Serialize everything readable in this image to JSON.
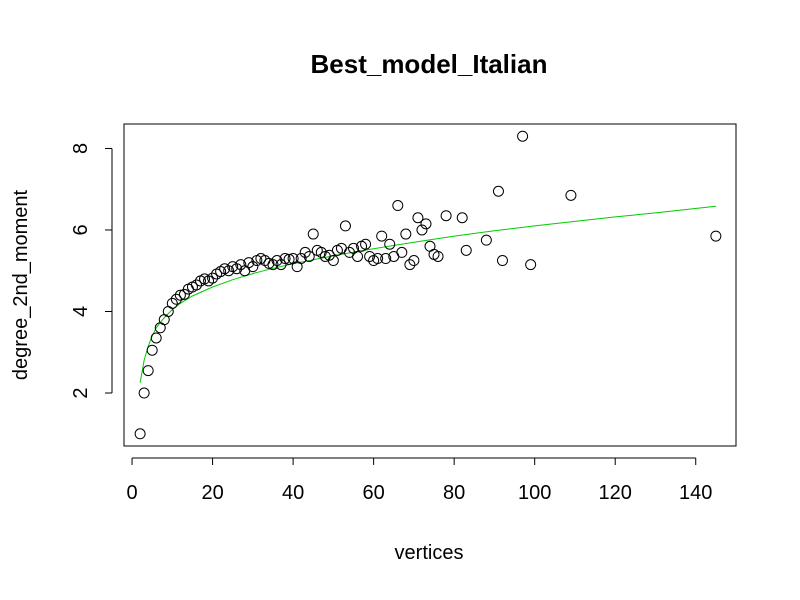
{
  "chart_data": {
    "type": "scatter",
    "title": "Best_model_Italian",
    "xlabel": "vertices",
    "ylabel": "degree_2nd_moment",
    "xlim": [
      -2,
      150
    ],
    "ylim": [
      0.7,
      8.6
    ],
    "x_ticks": [
      0,
      20,
      40,
      60,
      80,
      100,
      120,
      140
    ],
    "y_ticks": [
      2,
      4,
      6,
      8
    ],
    "grid": false,
    "colors": {
      "points": "#000000",
      "fit": "#00cc00"
    },
    "series": [
      {
        "type": "scatter",
        "points": [
          [
            2,
            1.0
          ],
          [
            3,
            2.0
          ],
          [
            4,
            2.55
          ],
          [
            5,
            3.05
          ],
          [
            6,
            3.35
          ],
          [
            7,
            3.6
          ],
          [
            8,
            3.8
          ],
          [
            9,
            4.0
          ],
          [
            10,
            4.2
          ],
          [
            11,
            4.3
          ],
          [
            12,
            4.4
          ],
          [
            13,
            4.42
          ],
          [
            14,
            4.55
          ],
          [
            15,
            4.6
          ],
          [
            16,
            4.65
          ],
          [
            17,
            4.75
          ],
          [
            18,
            4.8
          ],
          [
            19,
            4.75
          ],
          [
            20,
            4.82
          ],
          [
            21,
            4.92
          ],
          [
            22,
            4.98
          ],
          [
            23,
            5.05
          ],
          [
            24,
            5.0
          ],
          [
            25,
            5.1
          ],
          [
            26,
            5.05
          ],
          [
            27,
            5.15
          ],
          [
            28,
            5.0
          ],
          [
            29,
            5.2
          ],
          [
            30,
            5.1
          ],
          [
            31,
            5.25
          ],
          [
            32,
            5.3
          ],
          [
            33,
            5.25
          ],
          [
            34,
            5.18
          ],
          [
            35,
            5.15
          ],
          [
            36,
            5.25
          ],
          [
            37,
            5.15
          ],
          [
            38,
            5.3
          ],
          [
            39,
            5.28
          ],
          [
            40,
            5.3
          ],
          [
            41,
            5.1
          ],
          [
            42,
            5.3
          ],
          [
            43,
            5.45
          ],
          [
            44,
            5.35
          ],
          [
            45,
            5.9
          ],
          [
            46,
            5.5
          ],
          [
            47,
            5.45
          ],
          [
            48,
            5.35
          ],
          [
            49,
            5.38
          ],
          [
            50,
            5.25
          ],
          [
            51,
            5.5
          ],
          [
            52,
            5.55
          ],
          [
            53,
            6.1
          ],
          [
            54,
            5.45
          ],
          [
            55,
            5.55
          ],
          [
            56,
            5.35
          ],
          [
            57,
            5.6
          ],
          [
            58,
            5.65
          ],
          [
            59,
            5.35
          ],
          [
            60,
            5.25
          ],
          [
            61,
            5.3
          ],
          [
            62,
            5.85
          ],
          [
            63,
            5.3
          ],
          [
            64,
            5.65
          ],
          [
            65,
            5.35
          ],
          [
            66,
            6.6
          ],
          [
            67,
            5.45
          ],
          [
            68,
            5.9
          ],
          [
            69,
            5.15
          ],
          [
            70,
            5.25
          ],
          [
            71,
            6.3
          ],
          [
            72,
            6.0
          ],
          [
            73,
            6.15
          ],
          [
            74,
            5.6
          ],
          [
            75,
            5.4
          ],
          [
            76,
            5.35
          ],
          [
            78,
            6.35
          ],
          [
            82,
            6.3
          ],
          [
            83,
            5.5
          ],
          [
            88,
            5.75
          ],
          [
            91,
            6.95
          ],
          [
            92,
            5.25
          ],
          [
            97,
            8.3
          ],
          [
            99,
            5.15
          ],
          [
            109,
            6.85
          ],
          [
            145,
            5.85
          ]
        ]
      },
      {
        "type": "line",
        "name": "fit",
        "points": [
          [
            2,
            2.25
          ],
          [
            3,
            2.8
          ],
          [
            4,
            3.15
          ],
          [
            5,
            3.4
          ],
          [
            6,
            3.6
          ],
          [
            8,
            3.85
          ],
          [
            10,
            4.05
          ],
          [
            12,
            4.2
          ],
          [
            15,
            4.38
          ],
          [
            20,
            4.6
          ],
          [
            25,
            4.78
          ],
          [
            30,
            4.93
          ],
          [
            35,
            5.06
          ],
          [
            40,
            5.17
          ],
          [
            50,
            5.37
          ],
          [
            60,
            5.54
          ],
          [
            70,
            5.7
          ],
          [
            80,
            5.85
          ],
          [
            90,
            5.98
          ],
          [
            100,
            6.1
          ],
          [
            110,
            6.21
          ],
          [
            120,
            6.32
          ],
          [
            130,
            6.42
          ],
          [
            145,
            6.58
          ]
        ]
      }
    ]
  }
}
